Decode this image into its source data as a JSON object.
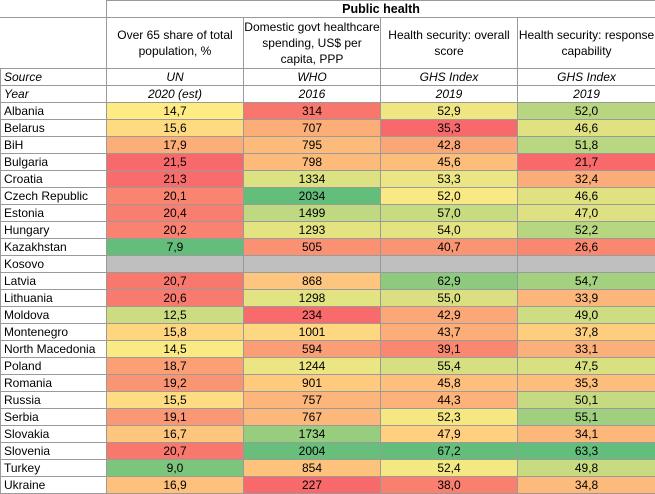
{
  "title": "Public health",
  "columns": [
    "Over 65 share of total population, %",
    "Domestic govt healthcare spending, US$ per capita, PPP",
    "Health security: overall score",
    "Health security: response capability"
  ],
  "source_label": "Source",
  "sources": [
    "UN",
    "WHO",
    "GHS Index",
    "GHS Index"
  ],
  "year_label": "Year",
  "years": [
    "2020 (est)",
    "2016",
    "2019",
    "2019"
  ],
  "colors": {
    "green": "#63be7b",
    "yellow": "#ffeb84",
    "red": "#f8696b",
    "missing": "#bfbfbf"
  },
  "chart_data": {
    "type": "table",
    "title": "Public health",
    "columns": [
      "Over 65 share of total population, %",
      "Domestic govt healthcare spending, US$ per capita, PPP",
      "Health security: overall score",
      "Health security: response capability"
    ],
    "color_scale_higher_is_better": [
      false,
      true,
      true,
      true
    ],
    "rows": [
      {
        "country": "Albania",
        "values": [
          "14,7",
          "314",
          "52,9",
          "52,0"
        ]
      },
      {
        "country": "Belarus",
        "values": [
          "15,6",
          "707",
          "35,3",
          "46,6"
        ]
      },
      {
        "country": "BiH",
        "values": [
          "17,9",
          "795",
          "42,8",
          "51,8"
        ]
      },
      {
        "country": "Bulgaria",
        "values": [
          "21,5",
          "798",
          "45,6",
          "21,7"
        ]
      },
      {
        "country": "Croatia",
        "values": [
          "21,3",
          "1334",
          "53,3",
          "32,4"
        ]
      },
      {
        "country": "Czech Republic",
        "values": [
          "20,1",
          "2034",
          "52,0",
          "46,6"
        ]
      },
      {
        "country": "Estonia",
        "values": [
          "20,4",
          "1499",
          "57,0",
          "47,0"
        ]
      },
      {
        "country": "Hungary",
        "values": [
          "20,2",
          "1293",
          "54,0",
          "52,2"
        ]
      },
      {
        "country": "Kazakhstan",
        "values": [
          "7,9",
          "505",
          "40,7",
          "26,6"
        ]
      },
      {
        "country": "Kosovo",
        "values": [
          "",
          "",
          "",
          ""
        ]
      },
      {
        "country": "Latvia",
        "values": [
          "20,7",
          "868",
          "62,9",
          "54,7"
        ]
      },
      {
        "country": "Lithuania",
        "values": [
          "20,6",
          "1298",
          "55,0",
          "33,9"
        ]
      },
      {
        "country": "Moldova",
        "values": [
          "12,5",
          "234",
          "42,9",
          "49,0"
        ]
      },
      {
        "country": "Montenegro",
        "values": [
          "15,8",
          "1001",
          "43,7",
          "37,8"
        ]
      },
      {
        "country": "North Macedonia",
        "values": [
          "14,5",
          "594",
          "39,1",
          "33,1"
        ]
      },
      {
        "country": "Poland",
        "values": [
          "18,7",
          "1244",
          "55,4",
          "47,5"
        ]
      },
      {
        "country": "Romania",
        "values": [
          "19,2",
          "901",
          "45,8",
          "35,3"
        ]
      },
      {
        "country": "Russia",
        "values": [
          "15,5",
          "757",
          "44,3",
          "50,1"
        ]
      },
      {
        "country": "Serbia",
        "values": [
          "19,1",
          "767",
          "52,3",
          "55,1"
        ]
      },
      {
        "country": "Slovakia",
        "values": [
          "16,7",
          "1734",
          "47,9",
          "34,1"
        ]
      },
      {
        "country": "Slovenia",
        "values": [
          "20,7",
          "2004",
          "67,2",
          "63,3"
        ]
      },
      {
        "country": "Turkey",
        "values": [
          "9,0",
          "854",
          "52,4",
          "49,8"
        ]
      },
      {
        "country": "Ukraine",
        "values": [
          "16,9",
          "227",
          "38,0",
          "34,8"
        ]
      }
    ]
  }
}
